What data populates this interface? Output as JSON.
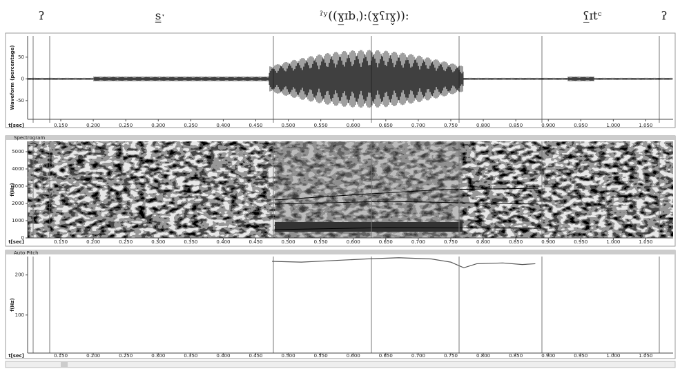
{
  "labels": [
    "ʔ",
    "s̳ˑ",
    "ˀʸ((ɣ̲ɪbˌ):(ɣ̲ʕɪɣ̬)):",
    "ʕ̲ɪtᶜ",
    "ʔ"
  ],
  "x_axis": {
    "label": "t[sec]",
    "xlim": [
      0.099,
      1.092
    ],
    "ticks": [
      {
        "value": 0.15,
        "label": "0.150"
      },
      {
        "value": 0.2,
        "label": "0.200"
      },
      {
        "value": 0.25,
        "label": "0.250"
      },
      {
        "value": 0.3,
        "label": "0.300"
      },
      {
        "value": 0.35,
        "label": "0.350"
      },
      {
        "value": 0.4,
        "label": "0.400"
      },
      {
        "value": 0.45,
        "label": "0.450"
      },
      {
        "value": 0.5,
        "label": "0.500"
      },
      {
        "value": 0.55,
        "label": "0.550"
      },
      {
        "value": 0.6,
        "label": "0.600"
      },
      {
        "value": 0.65,
        "label": "0.650"
      },
      {
        "value": 0.7,
        "label": "0.700"
      },
      {
        "value": 0.75,
        "label": "0.750"
      },
      {
        "value": 0.8,
        "label": "0.800"
      },
      {
        "value": 0.85,
        "label": "0.850"
      },
      {
        "value": 0.9,
        "label": "0.900"
      },
      {
        "value": 0.95,
        "label": "0.950"
      },
      {
        "value": 1.0,
        "label": "1.000"
      },
      {
        "value": 1.05,
        "label": "1.050"
      }
    ]
  },
  "panels": [
    {
      "y_label": "Waveform (percentage)",
      "ylim": [
        -93,
        99
      ],
      "yticks": [
        -50,
        0,
        50
      ]
    },
    {
      "title": "Spectrogram",
      "y_label": "f(Hz)",
      "ylim": [
        0,
        5600
      ],
      "yticks": [
        0,
        1000,
        2000,
        3000,
        4000,
        5000
      ]
    },
    {
      "title": "Auto Pitch",
      "y_label": "f(Hz)",
      "ylim": [
        5,
        246
      ],
      "yticks": [
        100,
        200
      ]
    }
  ],
  "pitch": {
    "x": [
      0.475,
      0.52,
      0.57,
      0.62,
      0.67,
      0.72,
      0.75,
      0.77,
      0.79,
      0.83,
      0.86,
      0.88
    ],
    "values": [
      234,
      232,
      236,
      240,
      243,
      240,
      232,
      218,
      228,
      230,
      226,
      228
    ]
  }
}
